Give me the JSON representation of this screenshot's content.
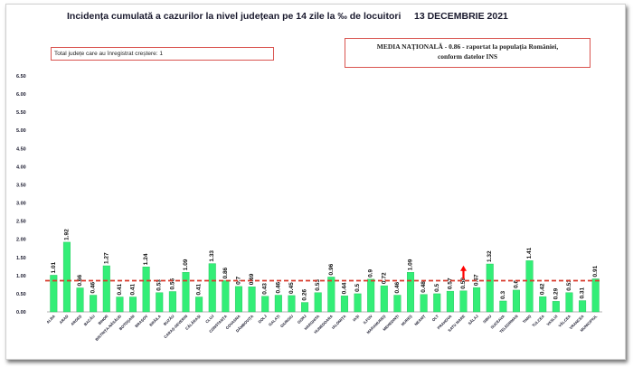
{
  "header": {
    "title": "Incidența cumulată a cazurilor la nivel județean pe 14 zile la ‰ de locuitori",
    "date": "13 DECEMBRIE 2021"
  },
  "notes": {
    "increase_box": "Total județe care au înregistrat creștere: 1",
    "national_line1": "MEDIA NAȚIONALĂ - 0.86 - raportat la populația României,",
    "national_line2": "conform datelor INS"
  },
  "colors": {
    "bar": "#33ee77",
    "bar_edge": "#1fbf55",
    "average_line": "#d93a2b",
    "increase_arrow": "#ff0000",
    "box_border": "#d9534f"
  },
  "chart_data": {
    "type": "bar",
    "categories": [
      "ALBA",
      "ARAD",
      "ARGEȘ",
      "BACĂU",
      "BIHOR",
      "BISTRIȚA-NĂSĂUD",
      "BOTOȘANI",
      "BRAȘOV",
      "BRĂILA",
      "BUZĂU",
      "CARAȘ-SEVERIN",
      "CĂLĂRAȘI",
      "CLUJ",
      "CONSTANȚA",
      "COVASNA",
      "DÂMBOVIȚA",
      "DOLJ",
      "GALAȚI",
      "GIURGIU",
      "GORJ",
      "HARGHITA",
      "HUNEDOARA",
      "IALOMIȚA",
      "IAȘI",
      "ILFOV",
      "MARAMUREȘ",
      "MEHEDINȚI",
      "MUREȘ",
      "NEAMȚ",
      "OLT",
      "PRAHOVA",
      "SATU MARE",
      "SĂLAJ",
      "SIBIU",
      "SUCEAVA",
      "TELEORMAN",
      "TIMIȘ",
      "TULCEA",
      "VASLUI",
      "VÂLCEA",
      "VRANCEA",
      "MUNICIPIUL"
    ],
    "values": [
      1.01,
      1.92,
      0.66,
      0.46,
      1.27,
      0.41,
      0.41,
      1.24,
      0.53,
      0.56,
      1.09,
      0.41,
      1.33,
      0.86,
      0.7,
      0.69,
      0.43,
      0.46,
      0.45,
      0.26,
      0.53,
      0.96,
      0.44,
      0.5,
      0.9,
      0.72,
      0.46,
      1.09,
      0.48,
      0.5,
      0.57,
      0.58,
      0.67,
      1.32,
      0.3,
      0.6,
      1.41,
      0.42,
      0.29,
      0.53,
      0.31,
      0.91
    ],
    "labels": [
      "1.01",
      "1.92",
      "0.66",
      "0.46",
      "1.27",
      "0.41",
      "0.41",
      "1.24",
      "0.53",
      "0.56",
      "1.09",
      "0.41",
      "1.33",
      "0.86",
      "0.7",
      "0.69",
      "0.43",
      "0.46",
      "0.45",
      "0.26",
      "0.53",
      "0.96",
      "0.44",
      "0.5",
      "0.9",
      "0.72",
      "0.46",
      "1.09",
      "0.48",
      "0.5",
      "0.57",
      "0.58",
      "0.67",
      "1.32",
      "0.3",
      "0.6",
      "1.41",
      "0.42",
      "0.29",
      "0.53",
      "0.31",
      "0.91"
    ],
    "increase_category": "SATU MARE",
    "average": 0.86,
    "ylim": [
      0,
      6.5
    ],
    "yticks": [
      "0.00",
      "0.50",
      "1.00",
      "1.50",
      "2.00",
      "2.50",
      "3.00",
      "3.50",
      "4.00",
      "4.50",
      "5.00",
      "5.50",
      "6.00",
      "6.50"
    ],
    "grid": false,
    "legend": "none"
  }
}
